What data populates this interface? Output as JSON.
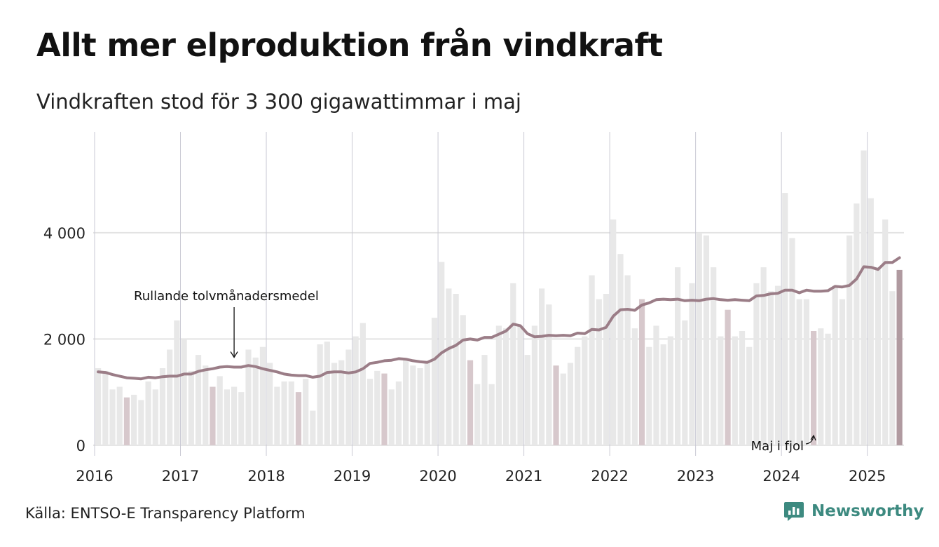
{
  "title": "Allt mer elproduktion från vindkraft",
  "subtitle": "Vindkraften stod för 3 300 gigawattimmar i maj",
  "source": "Källa: ENTSO-E Transparency Platform",
  "logo": {
    "name": "Newsworthy",
    "icon": "bar-chart-speech-icon",
    "color": "#3d8a80"
  },
  "colors": {
    "bar": "#e8e8e8",
    "bar_may": "#d7c8cc",
    "bar_latest": "#b09aa0",
    "line": "#9b7d87",
    "grid": "#e3e3e3",
    "year_grid": "#c9c9d4"
  },
  "chart_data": {
    "type": "bar",
    "unit": "GWh",
    "start": "2016-01",
    "ylim": [
      -200,
      5900
    ],
    "yticks": [
      0,
      2000,
      4000
    ],
    "ytick_labels": [
      "0",
      "2 000",
      "4 000"
    ],
    "xtick_labels": [
      "2016",
      "2017",
      "2018",
      "2019",
      "2020",
      "2021",
      "2022",
      "2023",
      "2024",
      "2025"
    ],
    "legend": "none",
    "grid": true,
    "series": [
      {
        "type": "bar",
        "values": [
          1450,
          1400,
          1050,
          1100,
          900,
          950,
          850,
          1200,
          1050,
          1450,
          1800,
          2350,
          2000,
          1400,
          1700,
          1500,
          1100,
          1300,
          1050,
          1100,
          1000,
          1800,
          1650,
          1850,
          1550,
          1100,
          1200,
          1200,
          1000,
          1250,
          650,
          1900,
          1950,
          1550,
          1600,
          1800,
          2050,
          2300,
          1250,
          1400,
          1350,
          1050,
          1200,
          1600,
          1500,
          1450,
          1550,
          2400,
          3450,
          2950,
          2850,
          2450,
          1600,
          1150,
          1700,
          1150,
          2250,
          2200,
          3050,
          2250,
          1700,
          2250,
          2950,
          2650,
          1500,
          1350,
          1550,
          1850,
          2050,
          3200,
          2750,
          2850,
          4250,
          3600,
          3200,
          2200,
          2750,
          1850,
          2250,
          1900,
          2050,
          3350,
          2350,
          3050,
          4000,
          3950,
          3350,
          2050,
          2550,
          2050,
          2150,
          1850,
          3050,
          3350,
          2900,
          3000,
          4750,
          3900,
          2750,
          2750,
          2150,
          2200,
          2100,
          3000,
          2750,
          3950,
          4550,
          5550,
          4650,
          3350,
          4250,
          2900,
          3300
        ]
      },
      {
        "type": "line",
        "name": "Rullande tolvmånadersmedel",
        "values": [
          1380,
          1370,
          1330,
          1300,
          1270,
          1260,
          1250,
          1280,
          1270,
          1290,
          1300,
          1300,
          1340,
          1340,
          1390,
          1420,
          1440,
          1470,
          1480,
          1470,
          1470,
          1500,
          1480,
          1440,
          1410,
          1380,
          1340,
          1320,
          1310,
          1310,
          1280,
          1300,
          1370,
          1380,
          1380,
          1360,
          1380,
          1440,
          1540,
          1560,
          1590,
          1600,
          1630,
          1620,
          1590,
          1570,
          1560,
          1620,
          1740,
          1820,
          1880,
          1980,
          2000,
          1980,
          2030,
          2030,
          2090,
          2150,
          2280,
          2250,
          2100,
          2040,
          2050,
          2070,
          2060,
          2070,
          2060,
          2110,
          2100,
          2180,
          2170,
          2220,
          2430,
          2550,
          2560,
          2540,
          2640,
          2680,
          2740,
          2750,
          2740,
          2750,
          2720,
          2730,
          2720,
          2750,
          2760,
          2740,
          2730,
          2740,
          2730,
          2720,
          2810,
          2820,
          2850,
          2860,
          2920,
          2920,
          2870,
          2920,
          2900,
          2900,
          2910,
          2990,
          2980,
          3010,
          3130,
          3360,
          3350,
          3310,
          3440,
          3440,
          3530
        ]
      }
    ],
    "annotations": [
      {
        "text": "Rullande tolvmånadersmedel",
        "target_month": "2017-08"
      },
      {
        "text": "Maj i fjol",
        "target_month": "2024-05"
      }
    ]
  }
}
